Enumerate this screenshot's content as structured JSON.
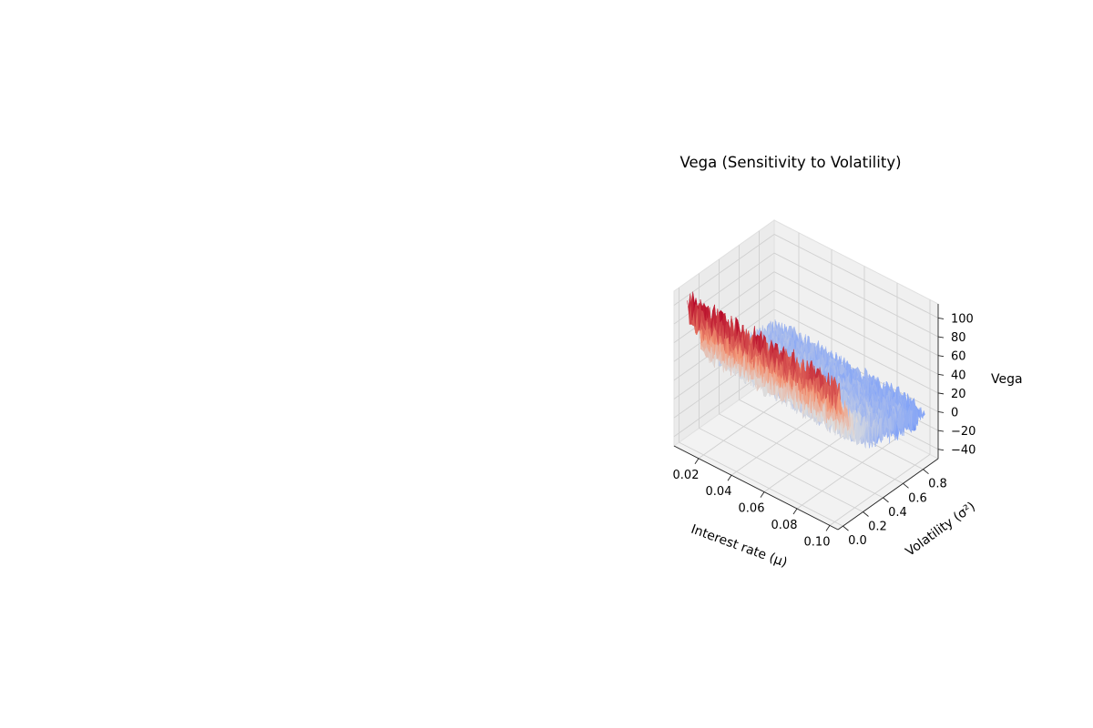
{
  "chart_data": {
    "type": "surface",
    "title": "Vega (Sensitivity to Volatility)",
    "xlabel": "Interest rate (μ)",
    "ylabel": "Volatility (σ²)",
    "zlabel": "Vega",
    "xlim": [
      0.005,
      0.105
    ],
    "ylim": [
      -0.05,
      0.95
    ],
    "zlim": [
      -50,
      115
    ],
    "xticks": [
      "0.02",
      "0.04",
      "0.06",
      "0.08",
      "0.10"
    ],
    "yticks": [
      "0.0",
      "0.2",
      "0.4",
      "0.6",
      "0.8"
    ],
    "zticks": [
      "−40",
      "−20",
      "0",
      "20",
      "40",
      "60",
      "80",
      "100"
    ],
    "xtick_values": [
      0.02,
      0.04,
      0.06,
      0.08,
      0.1
    ],
    "ytick_values": [
      0.0,
      0.2,
      0.4,
      0.6,
      0.8
    ],
    "ztick_values": [
      -40,
      -20,
      0,
      20,
      40,
      60,
      80,
      100
    ],
    "colormap": "coolwarm",
    "grid": true,
    "x": [
      0.01,
      0.03,
      0.05,
      0.07,
      0.09,
      0.1
    ],
    "y": [
      0.0,
      0.2,
      0.4,
      0.6,
      0.8,
      0.9
    ],
    "z": [
      [
        100,
        100,
        98,
        96,
        94,
        93
      ],
      [
        40,
        38,
        36,
        34,
        32,
        31
      ],
      [
        22,
        20,
        18,
        16,
        14,
        13
      ],
      [
        14,
        12,
        10,
        8,
        6,
        5
      ],
      [
        8,
        6,
        4,
        2,
        0,
        -1
      ],
      [
        6,
        4,
        2,
        0,
        -2,
        -3
      ]
    ],
    "noise_amplitude": 15
  }
}
